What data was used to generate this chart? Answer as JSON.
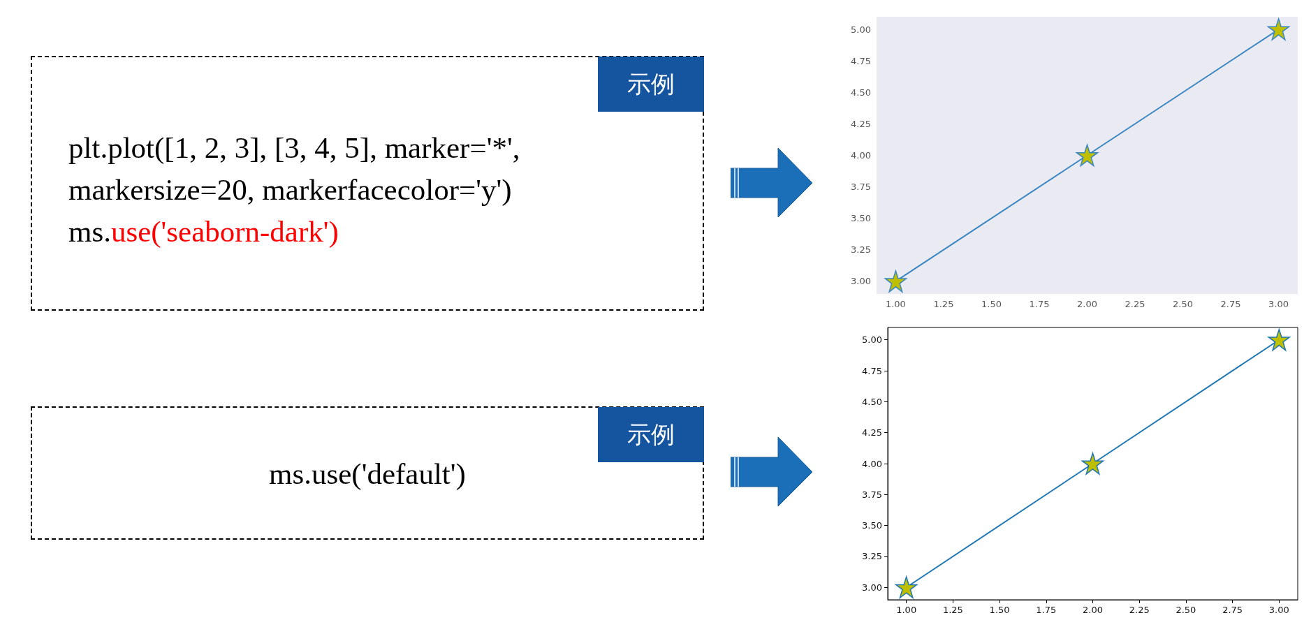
{
  "chart_data": [
    {
      "type": "other",
      "title": "示例",
      "annotations": [
        "plt.plot([1, 2, 3], [3, 4, 5], marker='*',",
        "markersize=20, markerfacecolor='y')",
        "ms.",
        "use('seaborn-dark')"
      ]
    },
    {
      "type": "line",
      "x": [
        1,
        2,
        3
      ],
      "series": [
        {
          "color": "#3a86c3",
          "colors": [
            "#bfbf00",
            "#bfbf00",
            "#bfbf00"
          ],
          "values": [
            3,
            4,
            5
          ]
        }
      ],
      "marker": "star",
      "grid": false,
      "xlim": [
        0.9,
        3.1
      ],
      "ylim": [
        2.9,
        5.1
      ],
      "xticks": [
        {
          "value": 1,
          "label": "1.00"
        },
        {
          "value": 1.25,
          "label": "1.25"
        },
        {
          "value": 1.5,
          "label": "1.50"
        },
        {
          "value": 1.75,
          "label": "1.75"
        },
        {
          "value": 2,
          "label": "2.00"
        },
        {
          "value": 2.25,
          "label": "2.25"
        },
        {
          "value": 2.5,
          "label": "2.50"
        },
        {
          "value": 2.75,
          "label": "2.75"
        },
        {
          "value": 3,
          "label": "3.00"
        }
      ],
      "yticks": [
        {
          "value": 3,
          "label": "3.00"
        },
        {
          "value": 3.25,
          "label": "3.25"
        },
        {
          "value": 3.5,
          "label": "3.50"
        },
        {
          "value": 3.75,
          "label": "3.75"
        },
        {
          "value": 4,
          "label": "4.00"
        },
        {
          "value": 4.25,
          "label": "4.25"
        },
        {
          "value": 4.5,
          "label": "4.50"
        },
        {
          "value": 4.75,
          "label": "4.75"
        },
        {
          "value": 5,
          "label": "5.00"
        }
      ]
    },
    {
      "type": "other",
      "title": "示例",
      "annotations": [
        "ms.use('default')"
      ]
    },
    {
      "type": "line",
      "x": [
        1,
        2,
        3
      ],
      "series": [
        {
          "color": "#1f77b4",
          "colors": [
            "#bfbf00",
            "#bfbf00",
            "#bfbf00"
          ],
          "values": [
            3,
            4,
            5
          ]
        }
      ],
      "marker": "star",
      "grid": false,
      "xlim": [
        0.9,
        3.1
      ],
      "ylim": [
        2.9,
        5.1
      ],
      "xticks": [
        {
          "value": 1,
          "label": "1.00"
        },
        {
          "value": 1.25,
          "label": "1.25"
        },
        {
          "value": 1.5,
          "label": "1.50"
        },
        {
          "value": 1.75,
          "label": "1.75"
        },
        {
          "value": 2,
          "label": "2.00"
        },
        {
          "value": 2.25,
          "label": "2.25"
        },
        {
          "value": 2.5,
          "label": "2.50"
        },
        {
          "value": 2.75,
          "label": "2.75"
        },
        {
          "value": 3,
          "label": "3.00"
        }
      ],
      "yticks": [
        {
          "value": 3,
          "label": "3.00"
        },
        {
          "value": 3.25,
          "label": "3.25"
        },
        {
          "value": 3.5,
          "label": "3.50"
        },
        {
          "value": 3.75,
          "label": "3.75"
        },
        {
          "value": 4,
          "label": "4.00"
        },
        {
          "value": 4.25,
          "label": "4.25"
        },
        {
          "value": 4.5,
          "label": "4.50"
        },
        {
          "value": 4.75,
          "label": "4.75"
        },
        {
          "value": 5,
          "label": "5.00"
        }
      ]
    }
  ]
}
